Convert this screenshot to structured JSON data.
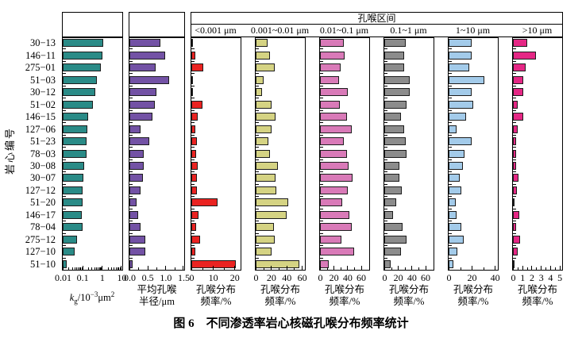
{
  "figure": {
    "caption": "图 6　不同渗透率岩心核磁孔喉分布频率统计",
    "y_axis_title": "岩心编号"
  },
  "header": {
    "group_title": "孔喉区间",
    "intervals": [
      "<0.001 μm",
      "0.001~0.01 μm",
      "0.01~0.1 μm",
      "0.1~1 μm",
      "1~10 μm",
      ">10 μm"
    ]
  },
  "chart_data": {
    "type": "bar",
    "orientation": "horizontal",
    "grid": false,
    "categories": [
      "30−13",
      "146−11",
      "275−01",
      "51−03",
      "30−12",
      "51−02",
      "146−15",
      "127−06",
      "51−23",
      "78−03",
      "30−08",
      "30−07",
      "127−12",
      "51−20",
      "146−17",
      "78−04",
      "275−12",
      "127−10",
      "51−10"
    ],
    "panels": [
      {
        "name": "permeability",
        "color": "#2a8b87",
        "scale": "log",
        "min": 0.01,
        "max": 10,
        "ticks": [
          {
            "label": "0.01",
            "v": 0.01
          },
          {
            "label": "0.1",
            "v": 0.1
          },
          {
            "label": "1",
            "v": 1
          },
          {
            "label": "10",
            "v": 10
          }
        ],
        "title_formula": {
          "var": "k",
          "sub": "g",
          "mid": "/10",
          "exp": "−3",
          "unit": "μm",
          "unit_exp": "2"
        },
        "values": [
          1.2,
          1.1,
          0.9,
          0.55,
          0.45,
          0.35,
          0.2,
          0.18,
          0.16,
          0.16,
          0.12,
          0.11,
          0.1,
          0.1,
          0.095,
          0.1,
          0.055,
          0.04,
          0.016
        ]
      },
      {
        "name": "avg-radius",
        "color": "#7352a5",
        "scale": "linear",
        "axis_max": 1.5,
        "minor_step": 0.25,
        "ticks": [
          {
            "label": "0.0",
            "v": 0
          },
          {
            "label": "0.5",
            "v": 0.5
          },
          {
            "label": "1.0",
            "v": 1.0
          },
          {
            "label": "1.5",
            "v": 1.5
          }
        ],
        "title_lines": [
          "平均孔喉",
          "半径/μm"
        ],
        "values": [
          0.85,
          1.0,
          0.73,
          1.1,
          0.74,
          0.7,
          0.64,
          0.3,
          0.55,
          0.4,
          0.4,
          0.38,
          0.3,
          0.2,
          0.25,
          0.3,
          0.45,
          0.45,
          0.08
        ]
      },
      {
        "name": "freq-lt-0.001um",
        "interval": "<0.001 μm",
        "color": "#ea2321",
        "scale": "linear",
        "axis_max": 22.5,
        "minor_step": 5,
        "ticks": [
          {
            "label": "0",
            "v": 0
          },
          {
            "label": "10",
            "v": 10
          },
          {
            "label": "20",
            "v": 20
          }
        ],
        "title_lines": [
          "孔喉分布",
          "频率/%"
        ],
        "values": [
          0.3,
          1.9,
          5.5,
          0.2,
          0.2,
          5,
          3,
          1.9,
          2.5,
          2.2,
          2.8,
          2.5,
          2.5,
          12,
          3.5,
          2.1,
          4.2,
          1.8,
          20.5
        ]
      },
      {
        "name": "freq-0.001-0.01um",
        "interval": "0.001~0.01 μm",
        "color": "#d5d383",
        "scale": "linear",
        "axis_max": 63,
        "minor_step": 10,
        "ticks": [
          {
            "label": "0",
            "v": 0
          },
          {
            "label": "20",
            "v": 20
          },
          {
            "label": "40",
            "v": 40
          },
          {
            "label": "60",
            "v": 60
          }
        ],
        "title_lines": [
          "孔喉分布",
          "频率/%"
        ],
        "values": [
          16,
          19,
          25,
          10,
          8,
          21,
          26,
          21,
          17,
          19,
          29,
          26,
          27,
          42,
          40,
          24,
          25,
          21,
          57
        ]
      },
      {
        "name": "freq-0.01-0.1um",
        "interval": "0.01~0.1 μm",
        "color": "#d97ab8",
        "scale": "linear",
        "axis_max": 71,
        "minor_step": 10,
        "ticks": [
          {
            "label": "0",
            "v": 0
          },
          {
            "label": "20",
            "v": 20
          },
          {
            "label": "40",
            "v": 40
          },
          {
            "label": "60",
            "v": 60
          }
        ],
        "title_lines": [
          "孔喉分布",
          "频率/%"
        ],
        "values": [
          35,
          36,
          30,
          28,
          41,
          29,
          39,
          46,
          35,
          40,
          42,
          48,
          41,
          33,
          43,
          47,
          32,
          50,
          13
        ]
      },
      {
        "name": "freq-0.1-1um",
        "interval": "0.1~1 μm",
        "color": "#8c8c8c",
        "scale": "linear",
        "axis_max": 71,
        "minor_step": 10,
        "ticks": [
          {
            "label": "0",
            "v": 0
          },
          {
            "label": "20",
            "v": 20
          },
          {
            "label": "40",
            "v": 40
          },
          {
            "label": "60",
            "v": 60
          }
        ],
        "title_lines": [
          "孔喉分布",
          "频率/%"
        ],
        "values": [
          32,
          29,
          29,
          37,
          37,
          33,
          24,
          29,
          32,
          33,
          22,
          22,
          26,
          17,
          13,
          27,
          33,
          24,
          9
        ]
      },
      {
        "name": "freq-1-10um",
        "interval": "1~10 μm",
        "color": "#a3cbea",
        "scale": "linear",
        "axis_max": 42,
        "minor_step": 10,
        "ticks": [
          {
            "label": "0",
            "v": 0
          },
          {
            "label": "20",
            "v": 20
          },
          {
            "label": "40",
            "v": 40
          }
        ],
        "title_lines": [
          "孔喉分布",
          "频率/%"
        ],
        "values": [
          20,
          20,
          18,
          31,
          20,
          21,
          15,
          7,
          20,
          13.5,
          12.5,
          9.5,
          11,
          6.5,
          7,
          11,
          13,
          7.5,
          4
        ]
      },
      {
        "name": "freq-gt-10um",
        "interval": ">10 μm",
        "color": "#e52785",
        "scale": "linear",
        "axis_max": 5.2,
        "minor_step": 0.5,
        "ticks": [
          {
            "label": "0",
            "v": 0
          },
          {
            "label": "1",
            "v": 1
          },
          {
            "label": "2",
            "v": 2
          },
          {
            "label": "3",
            "v": 3
          },
          {
            "label": "4",
            "v": 4
          },
          {
            "label": "5",
            "v": 5
          }
        ],
        "title_lines": [
          "孔喉分布",
          "频率/%"
        ],
        "values": [
          1.5,
          2.5,
          1.4,
          1.1,
          1.1,
          0.5,
          1.1,
          0.55,
          0.3,
          0.35,
          0.35,
          0.6,
          0.4,
          0.15,
          0.7,
          0.3,
          0.8,
          0.5,
          0.2
        ]
      }
    ]
  }
}
